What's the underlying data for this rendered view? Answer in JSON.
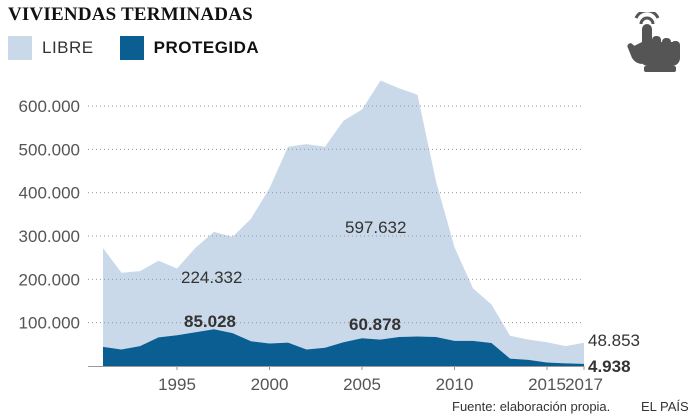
{
  "title": "VIVIENDAS TERMINADAS",
  "legend": {
    "libre": "LIBRE",
    "protegida": "PROTEGIDA"
  },
  "footer": {
    "source": "Fuente: elaboración propia.",
    "credit": "EL PAÍS"
  },
  "icon": "tap-hand-icon",
  "colors": {
    "libre": "#c9d9e9",
    "protegida": "#0a5e92",
    "icon": "#555555",
    "grid": "#999999"
  },
  "chart_data": {
    "type": "area",
    "stacked": true,
    "x": [
      1991,
      1992,
      1993,
      1994,
      1995,
      1996,
      1997,
      1998,
      1999,
      2000,
      2001,
      2002,
      2003,
      2004,
      2005,
      2006,
      2007,
      2008,
      2009,
      2010,
      2011,
      2012,
      2013,
      2014,
      2015,
      2016,
      2017
    ],
    "series": [
      {
        "name": "PROTEGIDA",
        "values": [
          44000,
          38000,
          46000,
          66000,
          71000,
          78000,
          85028,
          76000,
          57000,
          52000,
          54000,
          38000,
          42000,
          55000,
          64000,
          60878,
          67000,
          68000,
          67000,
          58000,
          58000,
          53000,
          17000,
          14000,
          8000,
          6000,
          4938
        ]
      },
      {
        "name": "LIBRE",
        "values": [
          228000,
          177000,
          173000,
          177000,
          154000,
          195000,
          224332,
          222000,
          283000,
          358000,
          452000,
          474000,
          464000,
          511000,
          528000,
          597632,
          574000,
          558000,
          359000,
          216000,
          121000,
          89000,
          53000,
          47000,
          47000,
          40000,
          48853
        ]
      }
    ],
    "ylim": [
      0,
      660000
    ],
    "xlim": [
      1991,
      2017
    ],
    "yticks": [
      100000,
      200000,
      300000,
      400000,
      500000,
      600000
    ],
    "ytick_labels": [
      "100.000",
      "200.000",
      "300.000",
      "400.000",
      "500.000",
      "600.000"
    ],
    "xticks": [
      1995,
      2000,
      2005,
      2010,
      2015,
      2017
    ],
    "xtick_labels": [
      "1995",
      "2000",
      "2005",
      "2010",
      "2015",
      "2017"
    ],
    "annotations": [
      {
        "x": 1997,
        "series": "LIBRE",
        "text": "224.332"
      },
      {
        "x": 1997,
        "series": "PROTEGIDA",
        "text": "85.028"
      },
      {
        "x": 2006,
        "series": "LIBRE",
        "text": "597.632"
      },
      {
        "x": 2006,
        "series": "PROTEGIDA",
        "text": "60.878"
      },
      {
        "x": 2017,
        "series": "LIBRE",
        "text": "48.853"
      },
      {
        "x": 2017,
        "series": "PROTEGIDA",
        "text": "4.938"
      }
    ],
    "grid": "horizontal dotted",
    "legend": "top-left"
  }
}
